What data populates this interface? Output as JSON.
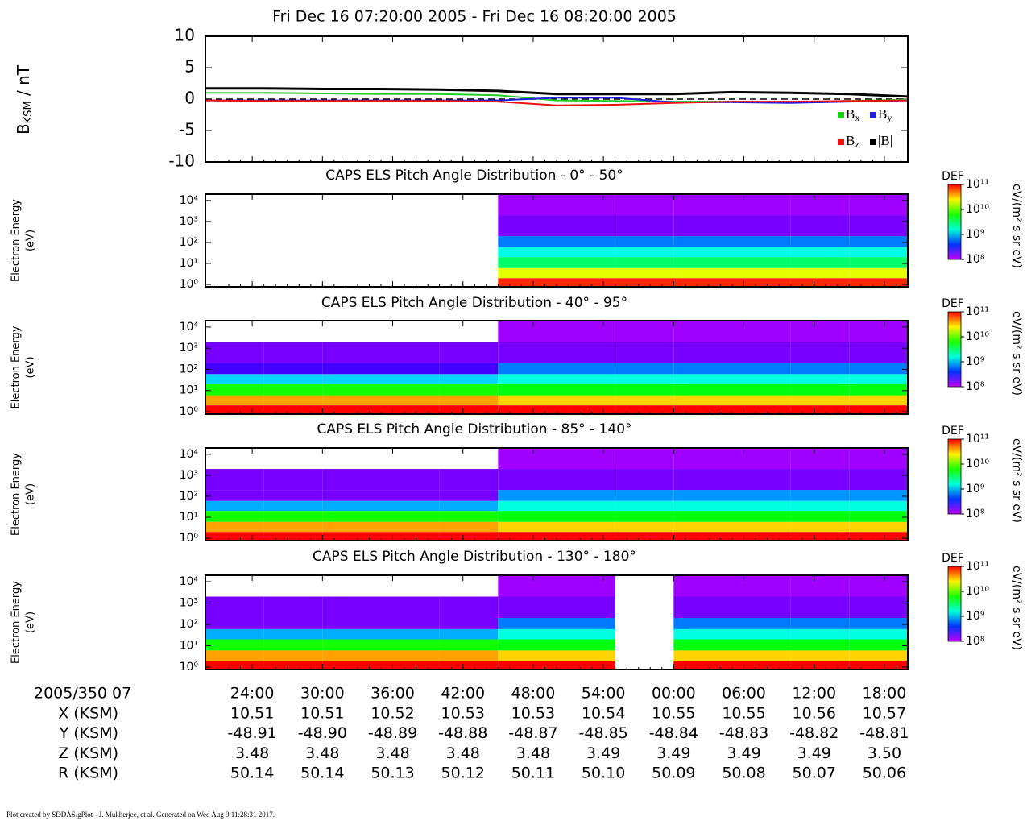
{
  "title": "Fri Dec 16 07:20:00 2005 - Fri Dec 16 08:20:00 2005",
  "time_axis": {
    "xlim": [
      "07:20",
      "08:20"
    ],
    "xticks": [
      {
        "value": "07:24",
        "label": "24:00"
      },
      {
        "value": "07:30",
        "label": "30:00"
      },
      {
        "value": "07:36",
        "label": "36:00"
      },
      {
        "value": "07:42",
        "label": "42:00"
      },
      {
        "value": "07:48",
        "label": "48:00"
      },
      {
        "value": "07:54",
        "label": "54:00"
      },
      {
        "value": "08:00",
        "label": "00:00"
      },
      {
        "value": "08:06",
        "label": "06:00"
      },
      {
        "value": "08:12",
        "label": "12:00"
      },
      {
        "value": "08:18",
        "label": "18:00"
      }
    ]
  },
  "chart_data": [
    {
      "type": "line",
      "ylabel": {
        "text": "B",
        "sub": "KSM",
        "suffix": " / nT"
      },
      "x": [
        "07:20",
        "07:25",
        "07:30",
        "07:35",
        "07:40",
        "07:45",
        "07:50",
        "07:55",
        "08:00",
        "08:05",
        "08:10",
        "08:15",
        "08:20"
      ],
      "ylim": [
        -10,
        10
      ],
      "yticks": [
        -10,
        -5,
        0,
        5,
        10
      ],
      "series": [
        {
          "name": "Bx",
          "color": "#22cc22",
          "values": [
            1.0,
            1.0,
            0.9,
            0.8,
            0.8,
            0.6,
            -0.2,
            -0.3,
            -0.4,
            -0.4,
            -0.5,
            -0.3,
            -0.1
          ]
        },
        {
          "name": "By",
          "color": "#1f1fdd",
          "values": [
            -0.2,
            -0.2,
            -0.2,
            -0.2,
            -0.2,
            -0.2,
            0.2,
            0.2,
            -0.5,
            -0.5,
            -0.6,
            -0.4,
            -0.2
          ]
        },
        {
          "name": "Bz",
          "color": "#ee1111",
          "values": [
            -0.2,
            -0.3,
            -0.3,
            -0.3,
            -0.3,
            -0.4,
            -1.0,
            -0.9,
            -0.6,
            -0.4,
            -0.4,
            -0.3,
            -0.2
          ]
        },
        {
          "name": "|B|",
          "color": "#000000",
          "values": [
            1.7,
            1.7,
            1.6,
            1.6,
            1.5,
            1.3,
            0.8,
            0.8,
            0.8,
            1.1,
            1.0,
            0.8,
            0.4
          ]
        }
      ]
    },
    {
      "type": "heatmap",
      "title": "CAPS ELS Pitch Angle Distribution - 0° - 50°",
      "ylabel": [
        "Electron Energy",
        "(eV)"
      ],
      "log_y": true,
      "ylim": [
        0.77,
        20000
      ],
      "yticks": [
        {
          "value": 1,
          "label": "10⁰"
        },
        {
          "value": 10,
          "label": "10¹"
        },
        {
          "value": 100,
          "label": "10²"
        },
        {
          "value": 1000,
          "label": "10³"
        },
        {
          "value": 10000,
          "label": "10⁴"
        }
      ],
      "time_bins": [
        "07:20",
        "07:25",
        "07:30",
        "07:35",
        "07:40",
        "07:45",
        "07:50",
        "07:55",
        "08:00",
        "08:05",
        "08:10",
        "08:15",
        "08:20"
      ],
      "energy_bins": [
        0.77,
        2,
        6,
        20,
        60,
        200,
        2000,
        20000
      ],
      "colorbar": {
        "label": "DEF",
        "unit": "eV/(m² s sr eV)",
        "lim": [
          100000000,
          100000000000
        ],
        "ticks": [
          {
            "value": 100000000000,
            "label": "10¹¹"
          },
          {
            "value": 10000000000,
            "label": "10¹⁰"
          },
          {
            "value": 1000000000,
            "label": "10⁹"
          },
          {
            "value": 100000000,
            "label": "10⁸"
          }
        ]
      },
      "values": [
        [
          null,
          null,
          null,
          null,
          null,
          null,
          null
        ],
        [
          null,
          null,
          null,
          null,
          null,
          null,
          null
        ],
        [
          null,
          null,
          null,
          null,
          null,
          null,
          null
        ],
        [
          null,
          null,
          null,
          null,
          null,
          null,
          null
        ],
        [
          null,
          null,
          null,
          null,
          null,
          null,
          null
        ],
        [
          80000000000,
          20000000000,
          3000000000,
          1500000000,
          600000000,
          150000000,
          120000000
        ],
        [
          80000000000,
          20000000000,
          3000000000,
          1500000000,
          600000000,
          150000000,
          120000000
        ],
        [
          80000000000,
          20000000000,
          3000000000,
          1500000000,
          600000000,
          150000000,
          120000000
        ],
        [
          80000000000,
          20000000000,
          3000000000,
          1500000000,
          600000000,
          150000000,
          120000000
        ],
        [
          80000000000,
          20000000000,
          3000000000,
          1500000000,
          600000000,
          150000000,
          120000000
        ],
        [
          80000000000,
          20000000000,
          3000000000,
          1500000000,
          600000000,
          150000000,
          120000000
        ],
        [
          80000000000,
          20000000000,
          3000000000,
          1500000000,
          600000000,
          150000000,
          120000000
        ]
      ]
    },
    {
      "type": "heatmap",
      "title": "CAPS ELS Pitch Angle Distribution - 40° - 95°",
      "ylabel": [
        "Electron Energy",
        "(eV)"
      ],
      "log_y": true,
      "ylim": [
        0.77,
        20000
      ],
      "yticks": [
        {
          "value": 1,
          "label": "10⁰"
        },
        {
          "value": 10,
          "label": "10¹"
        },
        {
          "value": 100,
          "label": "10²"
        },
        {
          "value": 1000,
          "label": "10³"
        },
        {
          "value": 10000,
          "label": "10⁴"
        }
      ],
      "time_bins": [
        "07:20",
        "07:25",
        "07:30",
        "07:35",
        "07:40",
        "07:45",
        "07:50",
        "07:55",
        "08:00",
        "08:05",
        "08:10",
        "08:15",
        "08:20"
      ],
      "energy_bins": [
        0.77,
        2,
        6,
        20,
        60,
        200,
        2000,
        20000
      ],
      "colorbar": {
        "label": "DEF",
        "unit": "eV/(m² s sr eV)",
        "lim": [
          100000000,
          100000000000
        ],
        "ticks": [
          {
            "value": 100000000000,
            "label": "10¹¹"
          },
          {
            "value": 10000000000,
            "label": "10¹⁰"
          },
          {
            "value": 1000000000,
            "label": "10⁹"
          },
          {
            "value": 100000000,
            "label": "10⁸"
          }
        ]
      },
      "values": [
        [
          100000000000,
          40000000000,
          6000000000,
          1000000000,
          200000000,
          150000000,
          null
        ],
        [
          100000000000,
          40000000000,
          6000000000,
          1000000000,
          200000000,
          150000000,
          null
        ],
        [
          100000000000,
          40000000000,
          6000000000,
          1000000000,
          200000000,
          150000000,
          null
        ],
        [
          100000000000,
          40000000000,
          6000000000,
          1000000000,
          200000000,
          150000000,
          null
        ],
        [
          100000000000,
          40000000000,
          6000000000,
          1000000000,
          200000000,
          150000000,
          null
        ],
        [
          100000000000,
          30000000000,
          5000000000,
          1500000000,
          600000000,
          150000000,
          120000000
        ],
        [
          100000000000,
          30000000000,
          5000000000,
          1500000000,
          600000000,
          150000000,
          120000000
        ],
        [
          100000000000,
          30000000000,
          5000000000,
          1500000000,
          600000000,
          150000000,
          120000000
        ],
        [
          100000000000,
          30000000000,
          5000000000,
          1500000000,
          600000000,
          150000000,
          120000000
        ],
        [
          100000000000,
          30000000000,
          5000000000,
          1500000000,
          600000000,
          150000000,
          120000000
        ],
        [
          100000000000,
          30000000000,
          5000000000,
          1500000000,
          600000000,
          150000000,
          120000000
        ],
        [
          100000000000,
          30000000000,
          5000000000,
          1500000000,
          600000000,
          150000000,
          120000000
        ]
      ]
    },
    {
      "type": "heatmap",
      "title": "CAPS ELS Pitch Angle Distribution - 85° - 140°",
      "ylabel": [
        "Electron Energy",
        "(eV)"
      ],
      "log_y": true,
      "ylim": [
        0.77,
        20000
      ],
      "yticks": [
        {
          "value": 1,
          "label": "10⁰"
        },
        {
          "value": 10,
          "label": "10¹"
        },
        {
          "value": 100,
          "label": "10²"
        },
        {
          "value": 1000,
          "label": "10³"
        },
        {
          "value": 10000,
          "label": "10⁴"
        }
      ],
      "time_bins": [
        "07:20",
        "07:25",
        "07:30",
        "07:35",
        "07:40",
        "07:45",
        "07:50",
        "07:55",
        "08:00",
        "08:05",
        "08:10",
        "08:15",
        "08:20"
      ],
      "energy_bins": [
        0.77,
        2,
        6,
        20,
        60,
        200,
        2000,
        20000
      ],
      "colorbar": {
        "label": "DEF",
        "unit": "eV/(m² s sr eV)",
        "lim": [
          100000000,
          100000000000
        ],
        "ticks": [
          {
            "value": 100000000000,
            "label": "10¹¹"
          },
          {
            "value": 10000000000,
            "label": "10¹⁰"
          },
          {
            "value": 1000000000,
            "label": "10⁹"
          },
          {
            "value": 100000000,
            "label": "10⁸"
          }
        ]
      },
      "values": [
        [
          100000000000,
          40000000000,
          6000000000,
          800000000,
          150000000,
          150000000,
          null
        ],
        [
          100000000000,
          40000000000,
          6000000000,
          800000000,
          150000000,
          150000000,
          null
        ],
        [
          100000000000,
          40000000000,
          6000000000,
          800000000,
          150000000,
          150000000,
          null
        ],
        [
          100000000000,
          40000000000,
          6000000000,
          800000000,
          150000000,
          150000000,
          null
        ],
        [
          100000000000,
          40000000000,
          6000000000,
          800000000,
          150000000,
          150000000,
          null
        ],
        [
          100000000000,
          30000000000,
          5000000000,
          1500000000,
          700000000,
          150000000,
          120000000
        ],
        [
          100000000000,
          30000000000,
          5000000000,
          1500000000,
          700000000,
          150000000,
          120000000
        ],
        [
          100000000000,
          30000000000,
          5000000000,
          1500000000,
          700000000,
          150000000,
          120000000
        ],
        [
          100000000000,
          30000000000,
          5000000000,
          1500000000,
          700000000,
          150000000,
          120000000
        ],
        [
          100000000000,
          30000000000,
          5000000000,
          1500000000,
          700000000,
          150000000,
          120000000
        ],
        [
          100000000000,
          30000000000,
          5000000000,
          1500000000,
          700000000,
          150000000,
          120000000
        ],
        [
          100000000000,
          30000000000,
          5000000000,
          1500000000,
          700000000,
          150000000,
          120000000
        ]
      ]
    },
    {
      "type": "heatmap",
      "title": "CAPS ELS Pitch Angle Distribution - 130° - 180°",
      "ylabel": [
        "Electron Energy",
        "(eV)"
      ],
      "log_y": true,
      "ylim": [
        0.77,
        20000
      ],
      "yticks": [
        {
          "value": 1,
          "label": "10⁰"
        },
        {
          "value": 10,
          "label": "10¹"
        },
        {
          "value": 100,
          "label": "10²"
        },
        {
          "value": 1000,
          "label": "10³"
        },
        {
          "value": 10000,
          "label": "10⁴"
        }
      ],
      "time_bins": [
        "07:20",
        "07:25",
        "07:30",
        "07:35",
        "07:40",
        "07:45",
        "07:50",
        "07:55",
        "08:00",
        "08:05",
        "08:10",
        "08:15",
        "08:20"
      ],
      "energy_bins": [
        0.77,
        2,
        6,
        20,
        60,
        200,
        2000,
        20000
      ],
      "colorbar": {
        "label": "DEF",
        "unit": "eV/(m² s sr eV)",
        "lim": [
          100000000,
          100000000000
        ],
        "ticks": [
          {
            "value": 100000000000,
            "label": "10¹¹"
          },
          {
            "value": 10000000000,
            "label": "10¹⁰"
          },
          {
            "value": 1000000000,
            "label": "10⁹"
          },
          {
            "value": 100000000,
            "label": "10⁸"
          }
        ]
      },
      "values": [
        [
          100000000000,
          40000000000,
          6000000000,
          800000000,
          150000000,
          150000000,
          null
        ],
        [
          100000000000,
          40000000000,
          6000000000,
          800000000,
          150000000,
          150000000,
          null
        ],
        [
          100000000000,
          40000000000,
          6000000000,
          800000000,
          150000000,
          150000000,
          null
        ],
        [
          100000000000,
          40000000000,
          6000000000,
          800000000,
          150000000,
          150000000,
          null
        ],
        [
          100000000000,
          40000000000,
          6000000000,
          800000000,
          150000000,
          150000000,
          null
        ],
        [
          100000000000,
          30000000000,
          5000000000,
          1500000000,
          600000000,
          150000000,
          120000000
        ],
        [
          100000000000,
          30000000000,
          5000000000,
          1500000000,
          600000000,
          150000000,
          120000000
        ],
        [
          null,
          null,
          null,
          null,
          null,
          null,
          null
        ],
        [
          100000000000,
          30000000000,
          5000000000,
          1500000000,
          600000000,
          150000000,
          120000000
        ],
        [
          100000000000,
          30000000000,
          5000000000,
          1500000000,
          600000000,
          150000000,
          120000000
        ],
        [
          100000000000,
          30000000000,
          5000000000,
          1500000000,
          600000000,
          150000000,
          120000000
        ],
        [
          100000000000,
          30000000000,
          5000000000,
          1500000000,
          600000000,
          150000000,
          120000000
        ]
      ]
    }
  ],
  "ephemeris": {
    "header": "2005/350 07",
    "rows": [
      {
        "label": "X (KSM)",
        "values": [
          "10.51",
          "10.51",
          "10.52",
          "10.53",
          "10.53",
          "10.54",
          "10.55",
          "10.55",
          "10.56",
          "10.57"
        ]
      },
      {
        "label": "Y (KSM)",
        "values": [
          "-48.91",
          "-48.90",
          "-48.89",
          "-48.88",
          "-48.87",
          "-48.85",
          "-48.84",
          "-48.83",
          "-48.82",
          "-48.81"
        ]
      },
      {
        "label": "Z (KSM)",
        "values": [
          "3.48",
          "3.48",
          "3.48",
          "3.48",
          "3.48",
          "3.49",
          "3.49",
          "3.49",
          "3.49",
          "3.50"
        ]
      },
      {
        "label": "R (KSM)",
        "values": [
          "50.14",
          "50.14",
          "50.13",
          "50.12",
          "50.11",
          "50.10",
          "50.09",
          "50.08",
          "50.07",
          "50.06"
        ]
      }
    ]
  },
  "footer": "Plot created by SDDAS/gPlot - J. Mukherjee, et al.  Generated on Wed Aug 9 11:28:31 2017."
}
